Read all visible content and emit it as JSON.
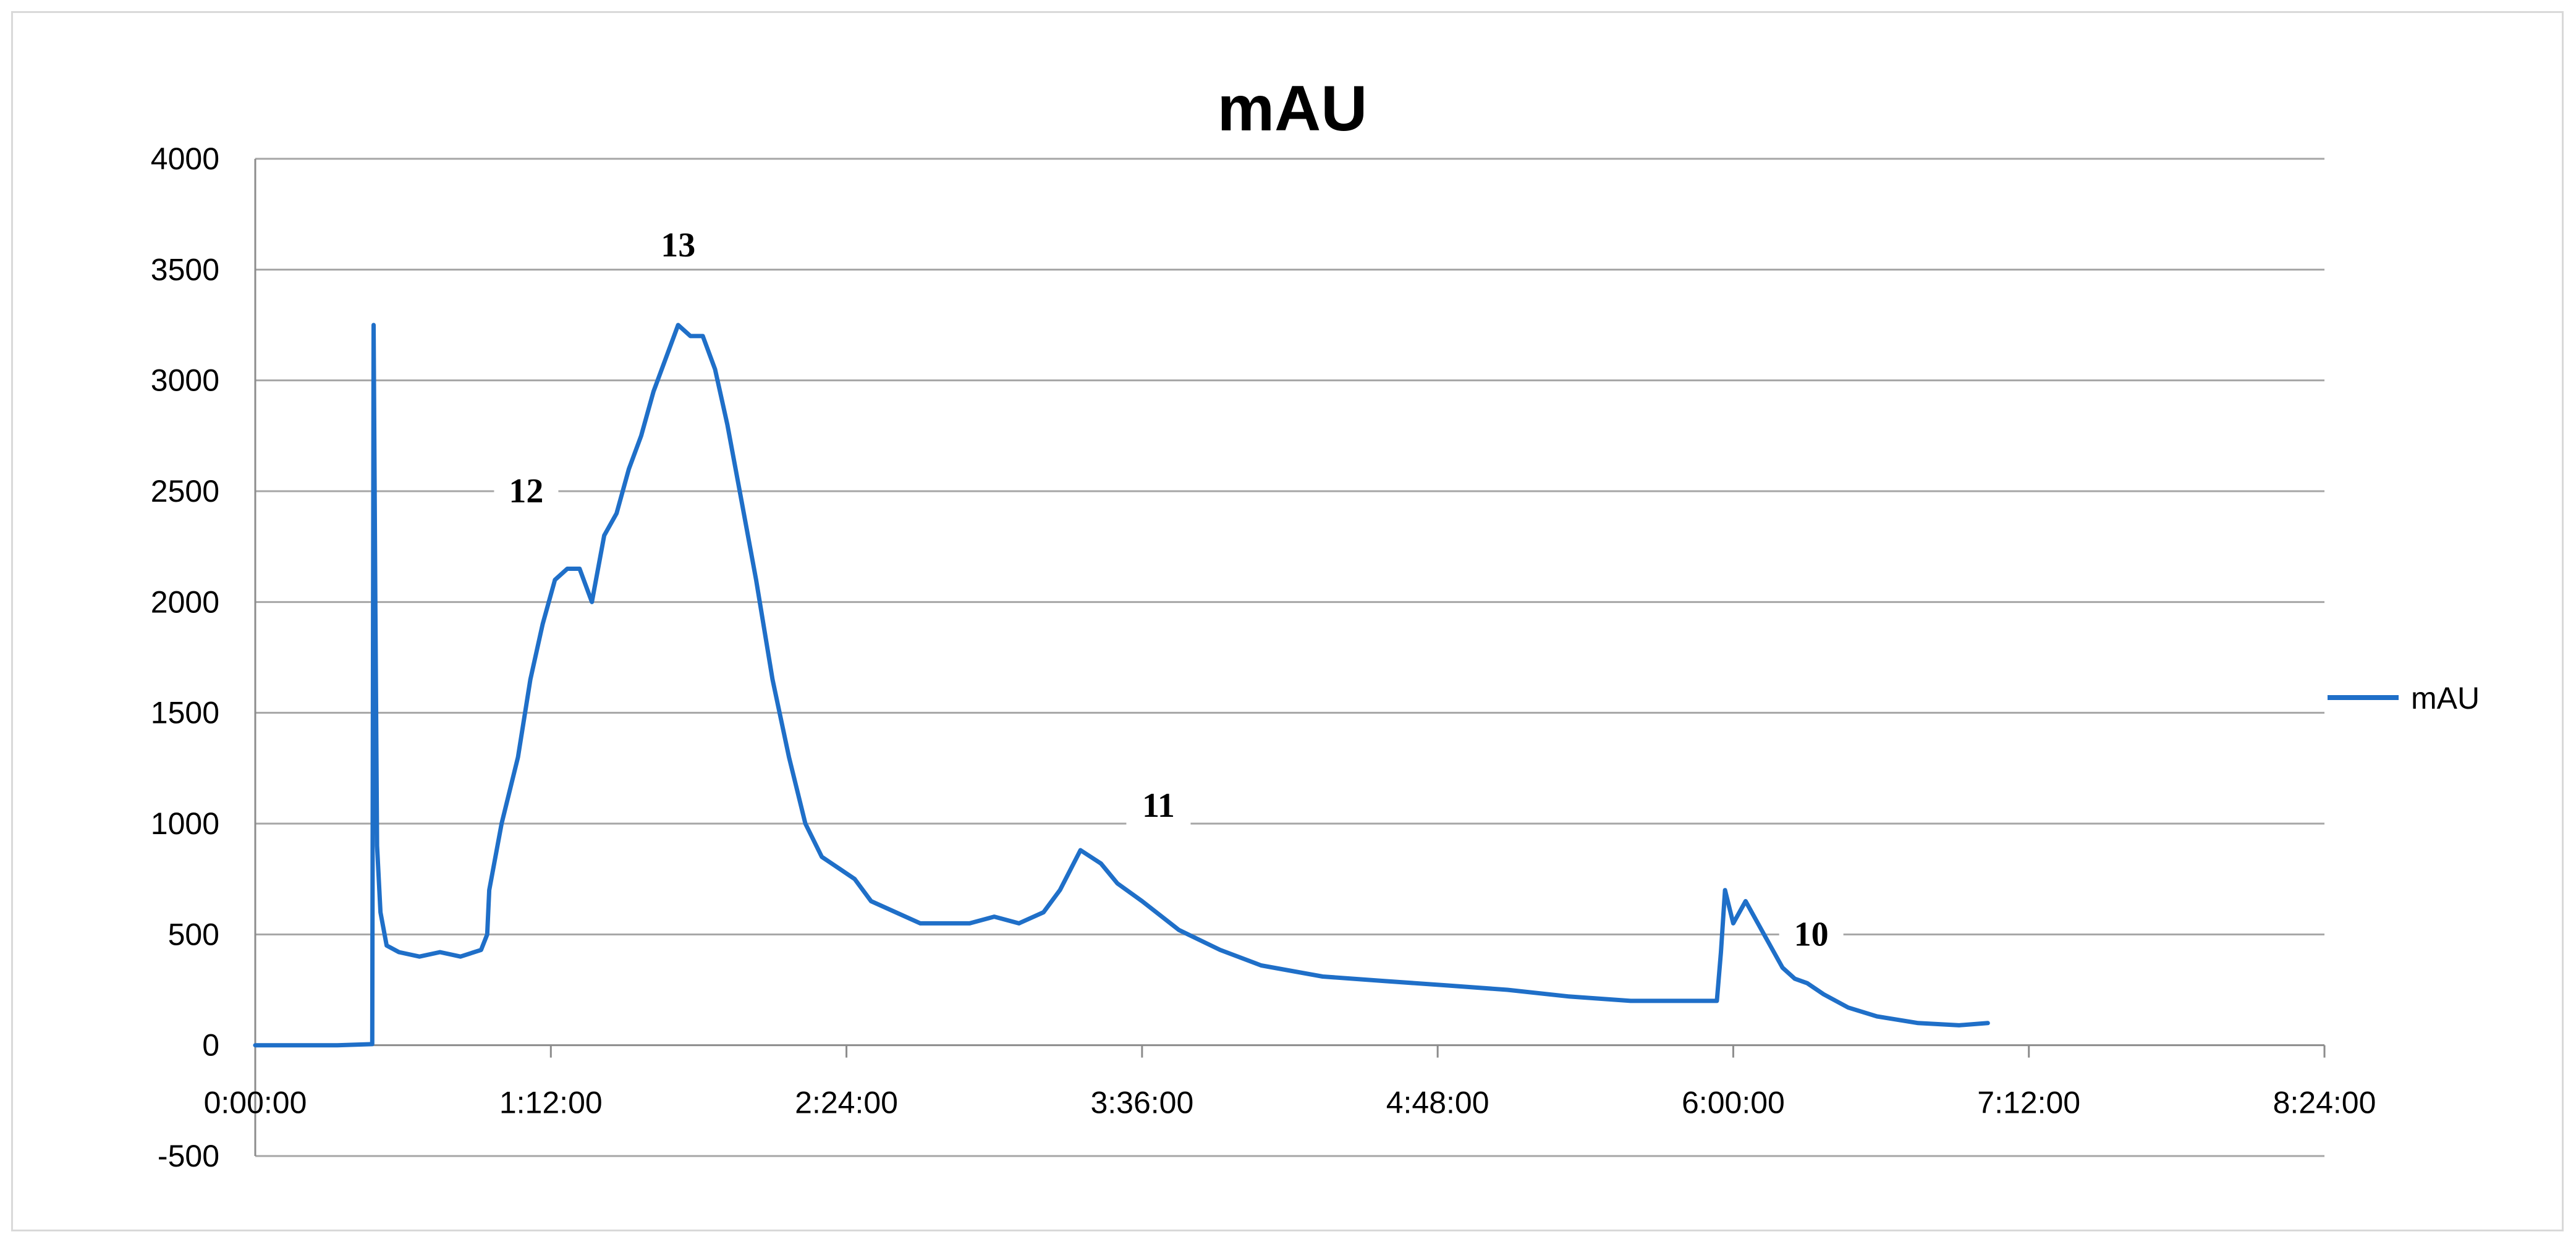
{
  "chart_data": {
    "type": "line",
    "title": "mAU",
    "xlabel": "",
    "ylabel": "",
    "x_unit": "time h:mm:ss",
    "xlim": [
      "0:00:00",
      "8:24:00"
    ],
    "ylim": [
      -500,
      4000
    ],
    "x_ticks": [
      "0:00:00",
      "1:12:00",
      "2:24:00",
      "3:36:00",
      "4:48:00",
      "6:00:00",
      "7:12:00",
      "8:24:00"
    ],
    "y_ticks": [
      -500,
      0,
      500,
      1000,
      1500,
      2000,
      2500,
      3000,
      3500,
      4000
    ],
    "grid": "horizontal",
    "legend_position": "right",
    "series_color": "#1f6fc8",
    "annotations": [
      {
        "text": "12",
        "x": "1:06:00",
        "y": 2450
      },
      {
        "text": "13",
        "x": "1:43:00",
        "y": 3560
      },
      {
        "text": "11",
        "x": "3:40:00",
        "y": 1030
      },
      {
        "text": "10",
        "x": "6:19:00",
        "y": 450
      }
    ],
    "series": [
      {
        "name": "mAU",
        "x": [
          "0:00:00",
          "0:20:00",
          "0:28:30",
          "0:28:50",
          "0:29:15",
          "0:29:40",
          "0:30:30",
          "0:32:00",
          "0:35:00",
          "0:40:00",
          "0:45:00",
          "0:50:00",
          "0:55:00",
          "0:56:30",
          "0:57:00",
          "1:00:00",
          "1:04:00",
          "1:07:00",
          "1:10:00",
          "1:13:00",
          "1:16:00",
          "1:19:00",
          "1:22:00",
          "1:25:00",
          "1:28:00",
          "1:31:00",
          "1:34:00",
          "1:37:00",
          "1:40:00",
          "1:43:00",
          "1:46:00",
          "1:49:00",
          "1:52:00",
          "1:55:00",
          "1:58:00",
          "2:02:00",
          "2:06:00",
          "2:10:00",
          "2:14:00",
          "2:18:00",
          "2:22:00",
          "2:26:00",
          "2:30:00",
          "2:36:00",
          "2:42:00",
          "2:48:00",
          "2:54:00",
          "3:00:00",
          "3:06:00",
          "3:12:00",
          "3:16:00",
          "3:21:00",
          "3:26:00",
          "3:30:00",
          "3:36:00",
          "3:45:00",
          "3:55:00",
          "4:05:00",
          "4:20:00",
          "4:35:00",
          "4:50:00",
          "5:05:00",
          "5:20:00",
          "5:35:00",
          "5:50:00",
          "5:56:00",
          "5:57:00",
          "5:58:00",
          "6:00:00",
          "6:03:00",
          "6:06:00",
          "6:09:00",
          "6:12:00",
          "6:15:00",
          "6:18:00",
          "6:22:00",
          "6:28:00",
          "6:35:00",
          "6:45:00",
          "6:55:00",
          "7:02:00"
        ],
        "values": [
          0,
          0,
          5,
          3250,
          2000,
          900,
          600,
          450,
          420,
          400,
          420,
          400,
          430,
          500,
          700,
          1000,
          1300,
          1650,
          1900,
          2100,
          2150,
          2150,
          2000,
          2300,
          2400,
          2600,
          2750,
          2950,
          3100,
          3250,
          3200,
          3200,
          3050,
          2800,
          2500,
          2100,
          1650,
          1300,
          1000,
          850,
          800,
          750,
          650,
          600,
          550,
          550,
          550,
          580,
          550,
          600,
          700,
          880,
          820,
          730,
          650,
          520,
          430,
          360,
          310,
          290,
          270,
          250,
          220,
          200,
          200,
          200,
          420,
          700,
          550,
          650,
          550,
          450,
          350,
          300,
          280,
          230,
          170,
          130,
          100,
          90,
          100
        ]
      }
    ]
  }
}
